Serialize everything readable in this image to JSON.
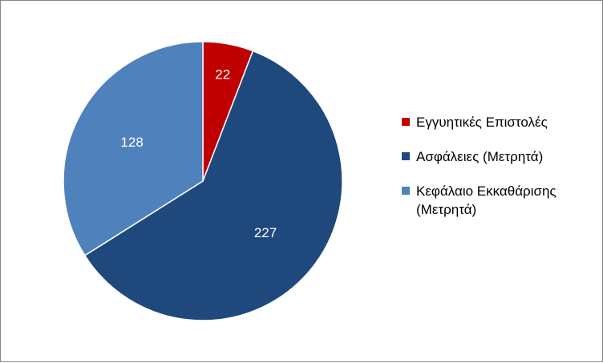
{
  "chart_data": {
    "type": "pie",
    "title": "",
    "slices": [
      {
        "name": "Εγγυητικές Επιστολές",
        "value": 22,
        "color": "#C00000"
      },
      {
        "name": "Ασφάλειες (Μετρητά)",
        "value": 227,
        "color": "#1F497D"
      },
      {
        "name": "Κεφάλαιο Εκκαθάρισης (Μετρητά)",
        "value": 128,
        "color": "#4F81BD"
      }
    ],
    "start_angle_deg": 0,
    "direction": "clockwise",
    "data_labels": true,
    "legend_position": "right",
    "border_color": "#868686"
  }
}
